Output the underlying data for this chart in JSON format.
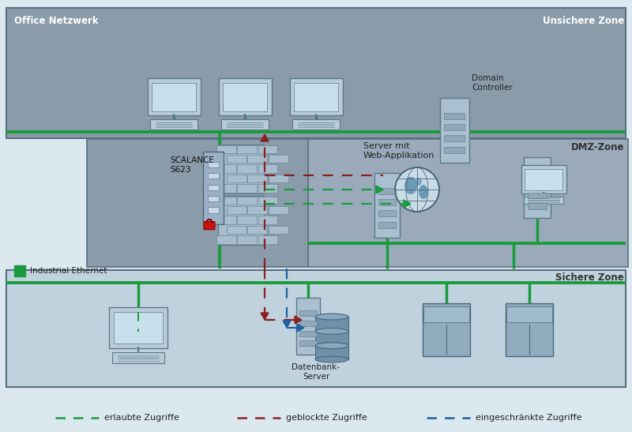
{
  "bg_color": "#dce8f0",
  "unsichere_color": "#8a9baa",
  "middle_color": "#8a9baa",
  "dmz_color": "#9aaabb",
  "sichere_color": "#c8d8e4",
  "green": "#1a9b3c",
  "red": "#8b2020",
  "blue": "#2060a0",
  "green_dash": "#1a9b3c",
  "legend": [
    {
      "label": "erlaubte Zugriffe",
      "color": "#1a9b3c"
    },
    {
      "label": "geblockte Zugriffe",
      "color": "#8b2020"
    },
    {
      "label": "eingeschränkte Zugriffe",
      "color": "#2060a0"
    }
  ],
  "texts": {
    "office": "Office Netzwerk",
    "unsichere": "Unsichere Zone",
    "dmz": "DMZ-Zone",
    "server_web": "Server mit\nWeb-Applikation",
    "domain": "Domain\nController",
    "scalance": "SCALANCE\nS623",
    "sichere": "Sichere Zone",
    "industrial": "Industrial Ethernet",
    "datenbank": "Datenbank-\nServer"
  }
}
